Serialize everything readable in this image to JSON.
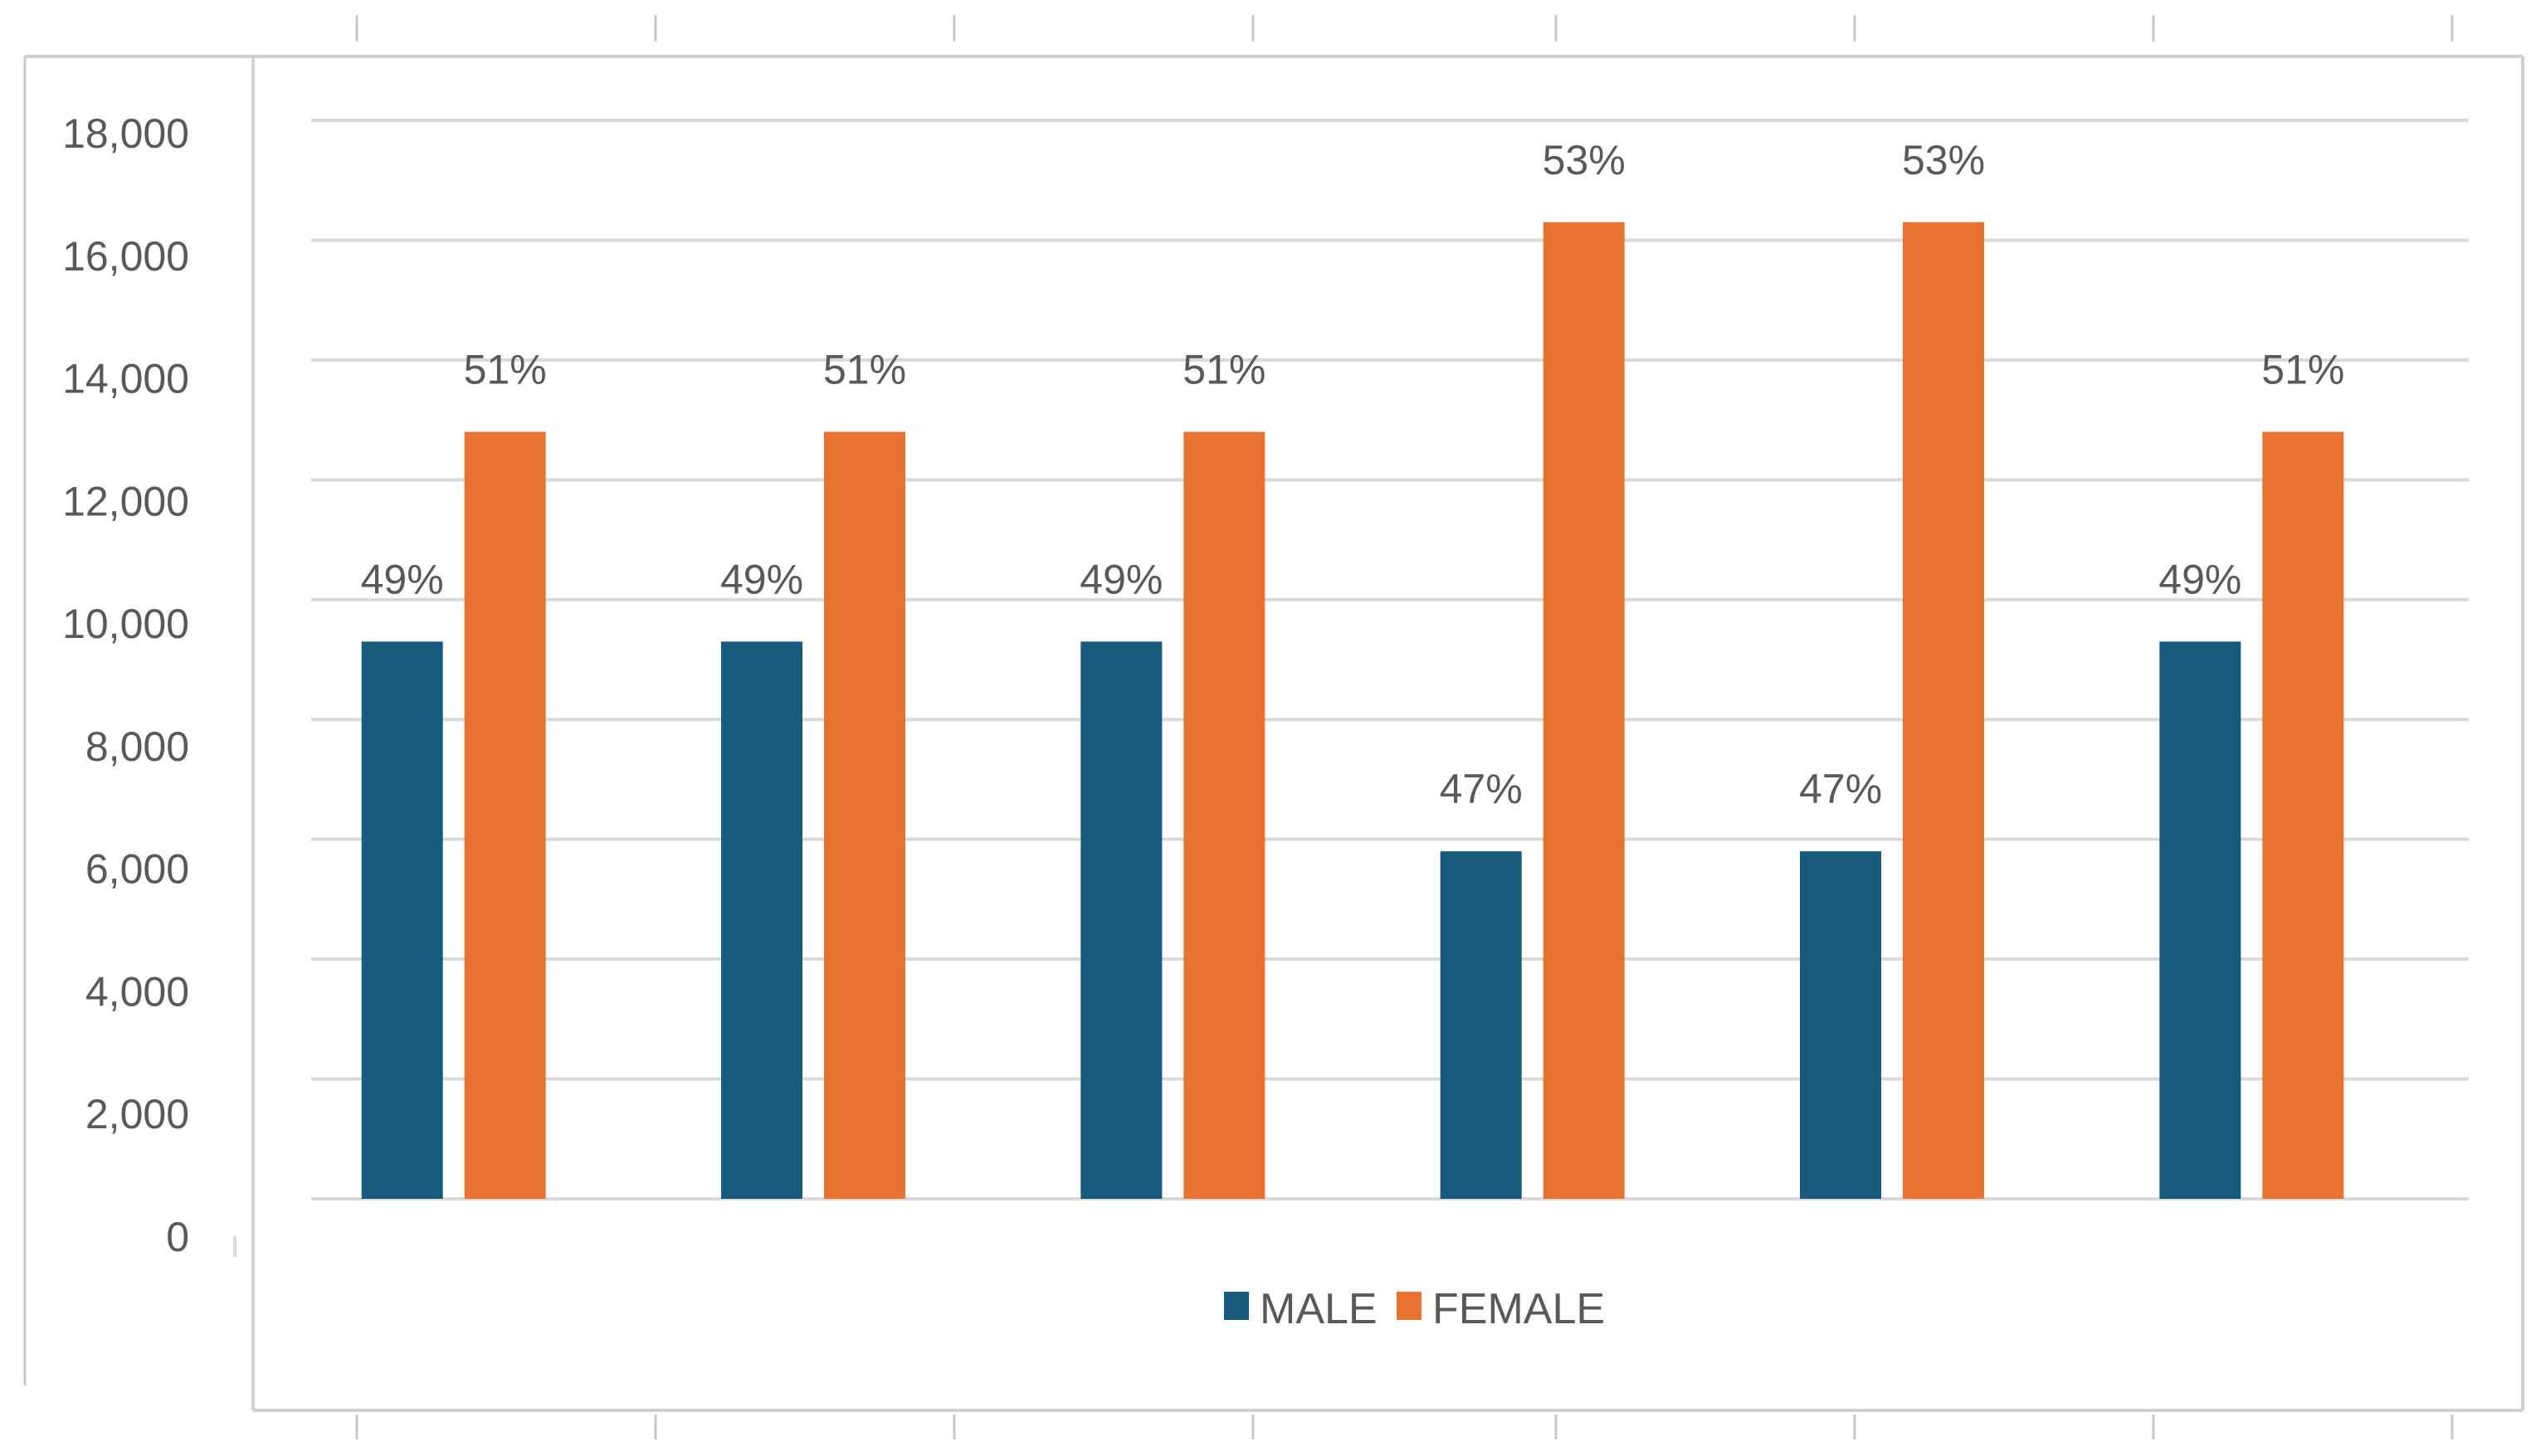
{
  "chart_data": {
    "type": "bar",
    "categories": [
      "",
      "",
      "",
      "",
      "",
      ""
    ],
    "series": [
      {
        "name": "MALE",
        "color": "#175a7b",
        "values": [
          9300,
          9300,
          9300,
          5800,
          5800,
          9300
        ],
        "labels": [
          "49%",
          "49%",
          "49%",
          "47%",
          "47%",
          "49%"
        ]
      },
      {
        "name": "FEMALE",
        "color": "#e87331",
        "values": [
          12800,
          12800,
          12800,
          16300,
          16300,
          12800
        ],
        "labels": [
          "51%",
          "51%",
          "51%",
          "53%",
          "53%",
          "51%"
        ]
      }
    ],
    "y_ticks": [
      "0",
      "2,000",
      "4,000",
      "6,000",
      "8,000",
      "10,000",
      "12,000",
      "14,000",
      "16,000",
      "18,000"
    ],
    "ylim": [
      0,
      18000
    ],
    "grid": true,
    "legend_position": "bottom",
    "title": "",
    "xlabel": "",
    "ylabel": ""
  },
  "colors": {
    "grid": "#d9d9d9",
    "frame": "#d0d0d0",
    "text": "#595959"
  }
}
